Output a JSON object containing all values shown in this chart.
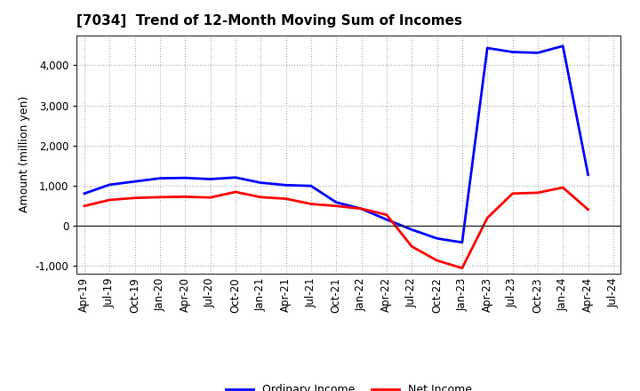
{
  "title": "[7034]  Trend of 12-Month Moving Sum of Incomes",
  "ylabel": "Amount (million yen)",
  "x_labels": [
    "Apr-19",
    "Jul-19",
    "Oct-19",
    "Jan-20",
    "Apr-20",
    "Jul-20",
    "Oct-20",
    "Jan-21",
    "Apr-21",
    "Jul-21",
    "Oct-21",
    "Jan-22",
    "Apr-22",
    "Jul-22",
    "Oct-22",
    "Jan-23",
    "Apr-23",
    "Jul-23",
    "Oct-23",
    "Jan-24",
    "Apr-24",
    "Jul-24"
  ],
  "ordinary_income": [
    800,
    1020,
    1100,
    1180,
    1190,
    1160,
    1200,
    1070,
    1010,
    990,
    580,
    420,
    150,
    -100,
    -320,
    -420,
    4430,
    4330,
    4310,
    4480,
    1270,
    null
  ],
  "net_income": [
    490,
    640,
    690,
    710,
    720,
    700,
    840,
    710,
    670,
    540,
    490,
    420,
    270,
    -520,
    -870,
    -1060,
    190,
    800,
    820,
    950,
    400,
    null
  ],
  "ordinary_color": "#0000ff",
  "net_color": "#ff0000",
  "background_color": "#ffffff",
  "grid_color": "#b0b0b0",
  "ylim": [
    -1200,
    4750
  ],
  "yticks": [
    -1000,
    0,
    1000,
    2000,
    3000,
    4000
  ],
  "legend_labels": [
    "Ordinary Income",
    "Net Income"
  ],
  "line_width": 2.0,
  "title_fontsize": 11,
  "axis_fontsize": 8.5,
  "ylabel_fontsize": 9
}
